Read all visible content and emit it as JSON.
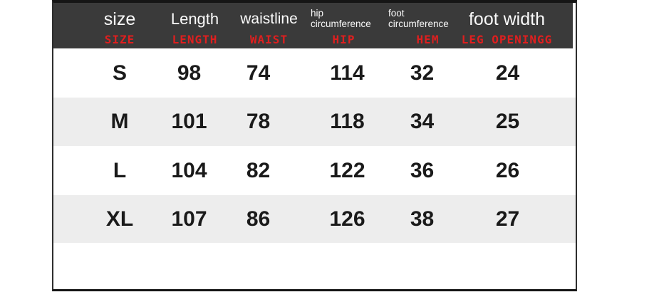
{
  "chart_data": {
    "type": "table",
    "columns": [
      {
        "name_en": "size",
        "name_red": "SIZE"
      },
      {
        "name_en": "Length",
        "name_red": "LENGTH"
      },
      {
        "name_en": "waistline",
        "name_red": "WAIST"
      },
      {
        "name_en": "hip circumference",
        "name_red": "HIP"
      },
      {
        "name_en": "foot circumference",
        "name_red": "HEM"
      },
      {
        "name_en": "foot width",
        "name_red": "LEG OPENINGG"
      }
    ],
    "rows": [
      [
        "S",
        98,
        74,
        114,
        32,
        24
      ],
      [
        "M",
        101,
        78,
        118,
        34,
        25
      ],
      [
        "L",
        104,
        82,
        122,
        36,
        26
      ],
      [
        "XL",
        107,
        86,
        126,
        38,
        27
      ]
    ]
  },
  "header": {
    "cells": [
      {
        "top": "size",
        "red": "SIZE"
      },
      {
        "top": "Length",
        "red": "LENGTH"
      },
      {
        "top": "waistline",
        "red": "WAIST"
      },
      {
        "top1": "hip",
        "top2": "circumference",
        "red": "HIP"
      },
      {
        "top1": "foot",
        "top2": "circumference",
        "red": "HEM"
      },
      {
        "top": "foot width",
        "red": "LEG OPENINGG"
      }
    ]
  },
  "rows": [
    {
      "cells": [
        "S",
        "98",
        "74",
        "114",
        "32",
        "24"
      ]
    },
    {
      "cells": [
        "M",
        "101",
        "78",
        "118",
        "34",
        "25"
      ]
    },
    {
      "cells": [
        "L",
        "104",
        "82",
        "122",
        "36",
        "26"
      ]
    },
    {
      "cells": [
        "XL",
        "107",
        "86",
        "126",
        "38",
        "27"
      ]
    }
  ],
  "colors": {
    "header_bg": "#3a3a3a",
    "header_text": "#fafafa",
    "red_label": "#df1f1f",
    "row_alt_bg": "#ededed",
    "body_text": "#1a1a1a",
    "border": "#2e2e2e"
  }
}
